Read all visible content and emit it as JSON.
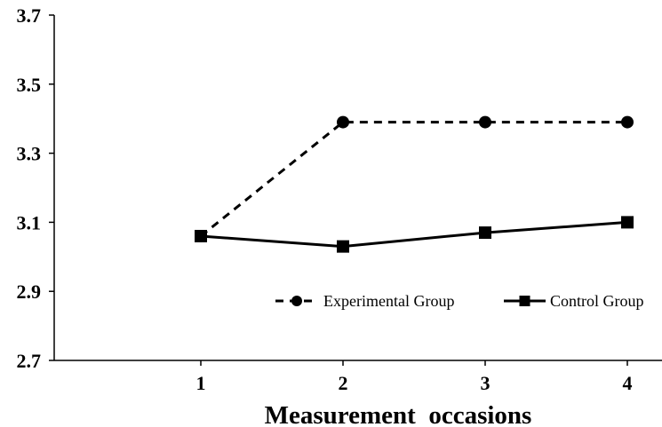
{
  "chart_data": {
    "type": "line",
    "title": "",
    "xlabel": "Measurement  occasions",
    "ylabel": "",
    "categories": [
      "1",
      "2",
      "3",
      "4"
    ],
    "y_ticks": [
      "2.7",
      "2.9",
      "3.1",
      "3.3",
      "3.5",
      "3.7"
    ],
    "ylim": [
      2.7,
      3.7
    ],
    "grid": false,
    "legend_position": "inside-lower-right",
    "series": [
      {
        "name": "Experimental Group",
        "values": [
          3.06,
          3.39,
          3.39,
          3.39
        ],
        "line_style": "dashed",
        "marker": "circle",
        "color": "#000000"
      },
      {
        "name": "Control Group",
        "values": [
          3.06,
          3.03,
          3.07,
          3.1
        ],
        "line_style": "solid",
        "marker": "square",
        "color": "#000000"
      }
    ]
  }
}
